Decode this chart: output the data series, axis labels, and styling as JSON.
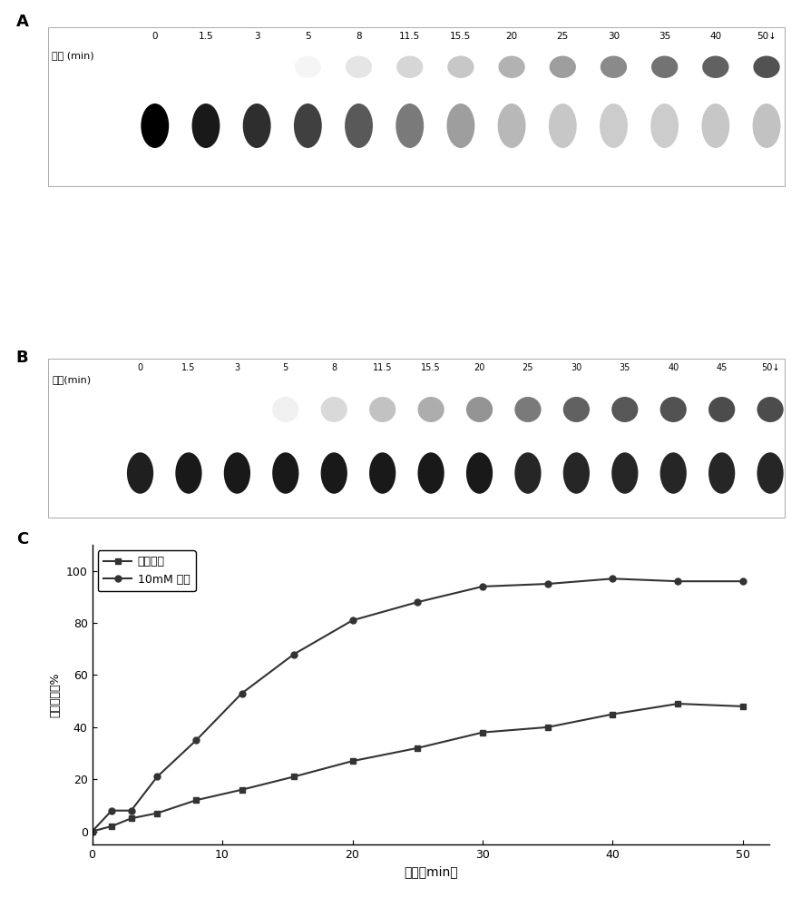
{
  "panel_A_label": "A",
  "panel_B_label": "B",
  "panel_C_label": "C",
  "panel_A_time_label": "时间 (min)",
  "panel_B_time_label": "时间(min)",
  "panel_A_times": [
    "0",
    "1.5",
    "3",
    "5",
    "8",
    "11.5",
    "15.5",
    "20",
    "25",
    "30",
    "35",
    "40",
    "50↓"
  ],
  "panel_B_times": [
    "0",
    "1.5",
    "3",
    "5",
    "8",
    "11.5",
    "15.5",
    "20",
    "25",
    "30",
    "35",
    "40",
    "45",
    "50↓"
  ],
  "legend_label_1": "不加精胺",
  "legend_label_2": "10mM 精胺",
  "xlabel": "时间（min）",
  "ylabel": "转化百分率%",
  "no_spermine_x": [
    0,
    1.5,
    3,
    5,
    8,
    11.5,
    15.5,
    20,
    25,
    30,
    35,
    40,
    45,
    50
  ],
  "no_spermine_y": [
    0,
    2,
    5,
    7,
    12,
    16,
    21,
    27,
    32,
    38,
    40,
    45,
    49,
    48
  ],
  "spermine_x": [
    0,
    1.5,
    3,
    5,
    8,
    11.5,
    15.5,
    20,
    25,
    30,
    35,
    40,
    45,
    50
  ],
  "spermine_y": [
    0,
    8,
    8,
    21,
    35,
    53,
    68,
    81,
    88,
    94,
    95,
    97,
    96,
    96
  ],
  "ylim": [
    -5,
    110
  ],
  "xlim": [
    0,
    52
  ],
  "yticks": [
    0,
    20,
    40,
    60,
    80,
    100
  ],
  "xticks": [
    0,
    10,
    20,
    30,
    40,
    50
  ],
  "line_color": "#333333",
  "panel_A_substrate_alpha": [
    1.0,
    0.9,
    0.82,
    0.75,
    0.65,
    0.52,
    0.38,
    0.28,
    0.22,
    0.2,
    0.2,
    0.22,
    0.24
  ],
  "panel_A_product_alpha": [
    0.0,
    0.0,
    0.0,
    0.04,
    0.1,
    0.16,
    0.22,
    0.3,
    0.38,
    0.46,
    0.55,
    0.62,
    0.68
  ],
  "panel_B_bottom_alpha": [
    0.88,
    0.9,
    0.9,
    0.9,
    0.9,
    0.9,
    0.9,
    0.9,
    0.85,
    0.85,
    0.85,
    0.85,
    0.85,
    0.85
  ],
  "panel_B_top_alpha": [
    0.0,
    0.0,
    0.0,
    0.06,
    0.15,
    0.24,
    0.32,
    0.42,
    0.52,
    0.62,
    0.66,
    0.68,
    0.7,
    0.7
  ]
}
